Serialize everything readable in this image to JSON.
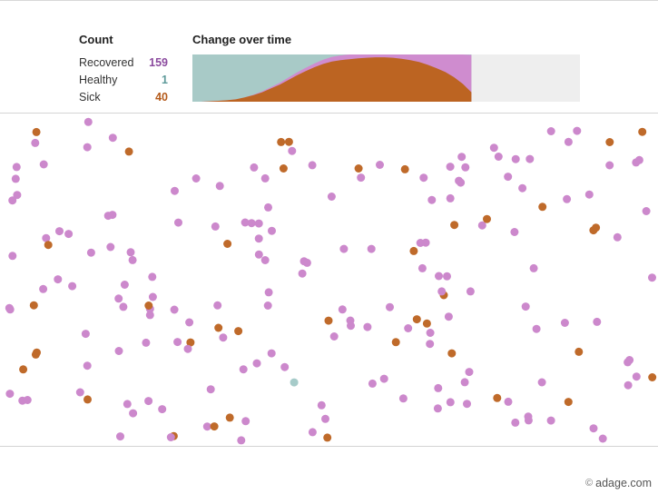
{
  "count_panel": {
    "title": "Count",
    "rows": [
      {
        "label": "Recovered",
        "value": "159",
        "color": "#8b4a9e"
      },
      {
        "label": "Healthy",
        "value": "1",
        "color": "#5e9a9a"
      },
      {
        "label": "Sick",
        "value": "40",
        "color": "#b45a1a"
      }
    ]
  },
  "change_panel": {
    "title": "Change over time"
  },
  "colors": {
    "recovered_dot": "#cc88cc",
    "sick_dot": "#bf6a2a",
    "healthy_dot": "#a6cbc9",
    "area_healthy": "#a8cac7",
    "area_sick": "#bc6422",
    "area_recovered": "#cf8ccf",
    "area_empty": "#eeeeee"
  },
  "watermark": {
    "text": "adage.com",
    "icon": "copyright-icon"
  },
  "chart_data": {
    "type": "area",
    "title": "Change over time",
    "series_order": [
      "Sick",
      "Recovered",
      "Healthy"
    ],
    "elapsed_fraction": 0.72,
    "sick_fraction": [
      0.0,
      0.0,
      0.01,
      0.02,
      0.03,
      0.05,
      0.09,
      0.14,
      0.2,
      0.28,
      0.36,
      0.46,
      0.56,
      0.65,
      0.73,
      0.8,
      0.85,
      0.88,
      0.9,
      0.92,
      0.93,
      0.94,
      0.94,
      0.93,
      0.91,
      0.88,
      0.84,
      0.78,
      0.71,
      0.63,
      0.52,
      0.38,
      0.2
    ],
    "recovered_fraction": [
      0.0,
      0.0,
      0.0,
      0.0,
      0.0,
      0.0,
      0.0,
      0.01,
      0.02,
      0.03,
      0.04,
      0.05,
      0.06,
      0.07,
      0.08,
      0.09,
      0.1,
      0.1,
      0.1,
      0.09,
      0.1,
      0.12,
      0.17,
      0.22,
      0.28,
      0.34,
      0.42,
      0.5,
      0.58,
      0.66,
      0.72,
      0.77,
      0.79
    ]
  },
  "simulation": {
    "sick_indices": [
      5,
      18,
      27,
      32,
      41,
      49,
      56,
      62,
      70,
      77,
      84,
      91,
      98,
      106,
      113,
      120,
      127,
      134,
      141,
      148,
      155,
      162,
      169,
      176,
      183,
      190,
      193,
      196,
      12,
      36,
      64,
      88,
      102,
      130,
      158,
      172,
      186,
      45,
      117,
      151
    ],
    "healthy_indices": [
      137
    ],
    "dot_count": 200
  }
}
